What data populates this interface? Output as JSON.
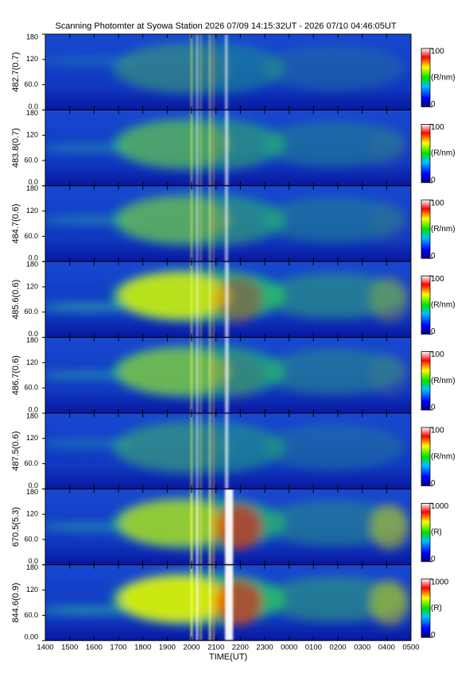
{
  "chart_data": {
    "type": "heatmap",
    "title": "Scanning Photomter at Syowa Station 2026 07/09 14:15:32UT - 2026 07/10 04:46:05UT",
    "xlabel": "TIME(UT)",
    "time_labels": [
      "1400",
      "1500",
      "1600",
      "1700",
      "1800",
      "1900",
      "2000",
      "2100",
      "2200",
      "2300",
      "0000",
      "0100",
      "0200",
      "0300",
      "0400",
      "0500"
    ],
    "panels": [
      {
        "ylabel": "482.7(0.7)",
        "ylim": [
          0,
          180
        ],
        "yticks": [
          {
            "value": 0,
            "label": "0.0"
          },
          {
            "value": 60,
            "label": "60.0"
          },
          120,
          180
        ],
        "colorbar": {
          "lim": [
            0,
            100
          ],
          "ticks": [
            0,
            100
          ],
          "label": "(R/nm)"
        }
      },
      {
        "ylabel": "483.8(0.7)",
        "ylim": [
          0,
          180
        ],
        "yticks": [
          {
            "value": 0,
            "label": "0.0"
          },
          {
            "value": 60,
            "label": "60.0"
          },
          120,
          180
        ],
        "colorbar": {
          "lim": [
            0,
            100
          ],
          "ticks": [
            0,
            100
          ],
          "label": "(R/nm)"
        }
      },
      {
        "ylabel": "484.7(0.6)",
        "ylim": [
          0,
          180
        ],
        "yticks": [
          {
            "value": 0,
            "label": "0.0"
          },
          {
            "value": 60,
            "label": "60.0"
          },
          120,
          180
        ],
        "colorbar": {
          "lim": [
            0,
            100
          ],
          "ticks": [
            0,
            100
          ],
          "label": "(R/nm)"
        }
      },
      {
        "ylabel": "485.6(0.6)",
        "ylim": [
          0,
          180
        ],
        "yticks": [
          {
            "value": 0,
            "label": "0.0"
          },
          {
            "value": 60,
            "label": "60.0"
          },
          120,
          180
        ],
        "colorbar": {
          "lim": [
            0,
            100
          ],
          "ticks": [
            0,
            100
          ],
          "label": "(R/nm)"
        }
      },
      {
        "ylabel": "486.7(0.6)",
        "ylim": [
          0,
          180
        ],
        "yticks": [
          {
            "value": 0,
            "label": "0.0"
          },
          {
            "value": 60,
            "label": "60.0"
          },
          120,
          180
        ],
        "colorbar": {
          "lim": [
            0,
            100
          ],
          "ticks": [
            0,
            100
          ],
          "label": "(R/nm)"
        }
      },
      {
        "ylabel": "487.5(0.6)",
        "ylim": [
          0,
          180
        ],
        "yticks": [
          {
            "value": 0,
            "label": "0.0"
          },
          {
            "value": 60,
            "label": "60.0"
          },
          120,
          180
        ],
        "colorbar": {
          "lim": [
            0,
            100
          ],
          "ticks": [
            0,
            100
          ],
          "label": "(R/nm)"
        }
      },
      {
        "ylabel": "670.5(5.3)",
        "ylim": [
          0,
          180
        ],
        "yticks": [
          {
            "value": 0,
            "label": "0.0"
          },
          {
            "value": 60,
            "label": "60.0"
          },
          120,
          180
        ],
        "colorbar": {
          "lim": [
            0,
            1000
          ],
          "ticks": [
            0,
            1000
          ],
          "label": "(R)"
        }
      },
      {
        "ylabel": "844.6(0.9)",
        "ylim": [
          0,
          180
        ],
        "yticks": [
          {
            "value": 0,
            "label": "0.00"
          },
          {
            "value": 60,
            "label": "60.0"
          },
          120,
          180
        ],
        "colorbar": {
          "lim": [
            0,
            1000
          ],
          "ticks": [
            0,
            1000
          ],
          "label": "(R)"
        }
      }
    ]
  }
}
